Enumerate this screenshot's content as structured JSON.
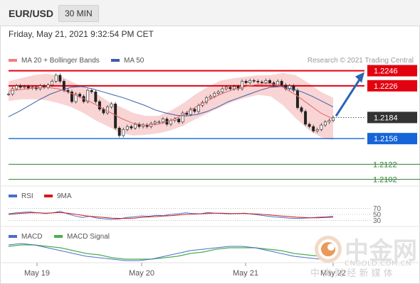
{
  "header": {
    "pair": "EUR/USD",
    "interval": "30 MIN"
  },
  "datetime": "Friday, May 21, 2021 9:32:54 PM CET",
  "legend": {
    "ma20": "MA 20 + Bollinger Bands",
    "ma50": "MA 50",
    "credit": "Research © 2021 Trading Central",
    "rsi": "RSI",
    "rsi_ma": "9MA",
    "macd": "MACD",
    "macd_signal": "MACD Signal"
  },
  "colors": {
    "resistance": "#e3000f",
    "support": "#1565d8",
    "target": "#2e7d32",
    "bollinger": "#f7c9c9",
    "ma50": "#3b5fa8",
    "arrow": "#2a64b5",
    "current_box": "#333333"
  },
  "chart_data": [
    {
      "type": "line",
      "title": "EUR/USD 30 MIN",
      "x_ticks": [
        "May 19",
        "May 20",
        "May 21",
        "May 22"
      ],
      "ylim": [
        1.2095,
        1.2255
      ],
      "levels": [
        {
          "label": "1.2246",
          "value": 1.2246,
          "kind": "resistance"
        },
        {
          "label": "1.2226",
          "value": 1.2226,
          "kind": "resistance"
        },
        {
          "label": "1.2184",
          "value": 1.2184,
          "kind": "current"
        },
        {
          "label": "1.2156",
          "value": 1.2156,
          "kind": "support"
        },
        {
          "label": "1.2122",
          "value": 1.2122,
          "kind": "target"
        },
        {
          "label": "1.2102",
          "value": 1.2102,
          "kind": "target"
        }
      ],
      "series": [
        {
          "name": "Price",
          "values": [
            1.2215,
            1.2222,
            1.2226,
            1.2224,
            1.2225,
            1.2223,
            1.2224,
            1.2222,
            1.2226,
            1.2224,
            1.2227,
            1.2232,
            1.224,
            1.2232,
            1.222,
            1.2218,
            1.2205,
            1.2215,
            1.2212,
            1.2205,
            1.222,
            1.2218,
            1.2205,
            1.2195,
            1.219,
            1.2198,
            1.2202,
            1.217,
            1.216,
            1.2168,
            1.2172,
            1.217,
            1.2175,
            1.2172,
            1.2174,
            1.2172,
            1.2176,
            1.2178,
            1.2178,
            1.2182,
            1.2175,
            1.218,
            1.2182,
            1.2178,
            1.219,
            1.2188,
            1.2195,
            1.2192,
            1.22,
            1.2204,
            1.221,
            1.2212,
            1.2216,
            1.2218,
            1.2222,
            1.2224,
            1.2222,
            1.2225,
            1.2222,
            1.2232,
            1.223,
            1.2233,
            1.2232,
            1.2231,
            1.223,
            1.2233,
            1.223,
            1.2227,
            1.2232,
            1.2227,
            1.2222,
            1.2226,
            1.222,
            1.2197,
            1.2192,
            1.2175,
            1.2172,
            1.2166,
            1.2168,
            1.2174,
            1.2178,
            1.218,
            1.2184
          ]
        },
        {
          "name": "MA 50",
          "values": [
            1.2185,
            1.2192,
            1.22,
            1.2208,
            1.2215,
            1.222,
            1.2224,
            1.2225,
            1.2222,
            1.2218,
            1.2214,
            1.221,
            1.2205,
            1.22,
            1.2194,
            1.219,
            1.2187,
            1.2186,
            1.2188,
            1.2192,
            1.2198,
            1.2205,
            1.221,
            1.2215,
            1.222,
            1.2224,
            1.2225,
            1.2222,
            1.2218,
            1.2212,
            1.2205,
            1.2198
          ]
        },
        {
          "name": "MA 20",
          "values": [
            1.2219,
            1.2221,
            1.2223,
            1.2224,
            1.2222,
            1.2216,
            1.2209,
            1.2201,
            1.2192,
            1.2183,
            1.2176,
            1.2174,
            1.2175,
            1.218,
            1.2188,
            1.2198,
            1.2207,
            1.2215,
            1.2221,
            1.2225,
            1.2228,
            1.2229,
            1.2224,
            1.2214,
            1.2202,
            1.219,
            1.2182
          ]
        }
      ],
      "bollinger_band": {
        "upper": [
          1.2232,
          1.2236,
          1.224,
          1.2242,
          1.224,
          1.2232,
          1.2224,
          1.2216,
          1.2205,
          1.2198,
          1.219,
          1.2186,
          1.2186,
          1.2193,
          1.2203,
          1.2215,
          1.2225,
          1.2233,
          1.2236,
          1.2238,
          1.224,
          1.224,
          1.2243,
          1.224,
          1.223,
          1.2218,
          1.221
        ],
        "lower": [
          1.2206,
          1.2208,
          1.2208,
          1.2207,
          1.2203,
          1.2198,
          1.219,
          1.218,
          1.2172,
          1.2163,
          1.216,
          1.2161,
          1.2163,
          1.2167,
          1.2173,
          1.2182,
          1.219,
          1.2198,
          1.2205,
          1.221,
          1.2214,
          1.2212,
          1.22,
          1.2183,
          1.2168,
          1.2158,
          1.2154
        ]
      }
    },
    {
      "type": "line",
      "title": "RSI",
      "ylim": [
        20,
        80
      ],
      "y_ticks": [
        "70",
        "50",
        "30"
      ],
      "series": [
        {
          "name": "RSI",
          "values": [
            52,
            55,
            57,
            58,
            55,
            53,
            55,
            60,
            52,
            45,
            40,
            44,
            38,
            36,
            34,
            35,
            40,
            42,
            45,
            44,
            47,
            46,
            50,
            52,
            55,
            53,
            52,
            56,
            54,
            53,
            52,
            53,
            54,
            51,
            48,
            45,
            42,
            40,
            38,
            37,
            38,
            39,
            41,
            42,
            44
          ]
        },
        {
          "name": "9MA",
          "values": [
            50,
            52,
            54,
            55,
            55,
            54,
            55,
            56,
            54,
            51,
            47,
            44,
            42,
            40,
            38,
            37,
            37,
            38,
            40,
            42,
            43,
            45,
            46,
            48,
            50,
            51,
            52,
            53,
            54,
            54,
            53,
            53,
            53,
            52,
            51,
            49,
            47,
            45,
            43,
            41,
            40,
            39,
            39,
            40,
            41
          ]
        }
      ]
    },
    {
      "type": "line",
      "title": "MACD",
      "series": [
        {
          "name": "MACD",
          "values": [
            0.0005,
            0.0006,
            0.0005,
            0.0003,
            0.0001,
            -0.0001,
            -0.0003,
            -0.0004,
            -0.0005,
            -0.0006,
            -0.0006,
            -0.0005,
            -0.0003,
            -0.0001,
            0.0001,
            0.0002,
            0.0003,
            0.0004,
            0.0004,
            0.0003,
            0.0001,
            -0.0001,
            -0.0003,
            -0.0004,
            -0.0005,
            -0.0004
          ]
        },
        {
          "name": "MACD Signal",
          "values": [
            0.0004,
            0.0005,
            0.0005,
            0.0004,
            0.0003,
            0.0001,
            -0.0001,
            -0.0002,
            -0.0004,
            -0.0005,
            -0.0005,
            -0.0005,
            -0.0004,
            -0.0003,
            -0.0001,
            0.0,
            0.0002,
            0.0003,
            0.0003,
            0.0003,
            0.0002,
            0.0001,
            -0.0001,
            -0.0002,
            -0.0003,
            -0.0004
          ]
        }
      ]
    }
  ],
  "watermark": {
    "brand": "中金网",
    "domain": "CNGOLD.COM.CN",
    "slogan": "中 文 财 经 新 媒 体"
  }
}
